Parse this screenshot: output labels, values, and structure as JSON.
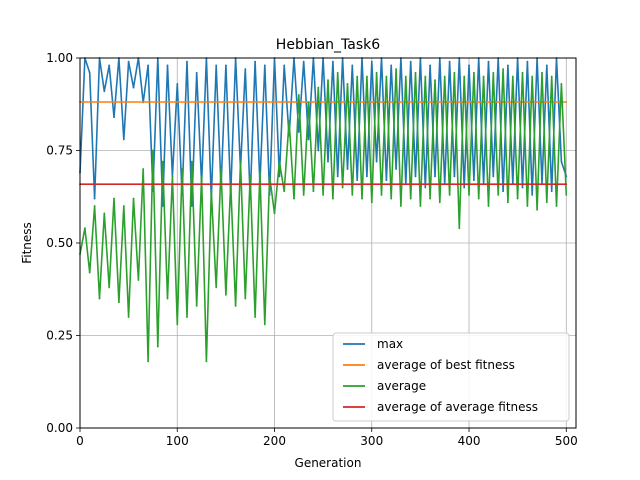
{
  "chart_data": {
    "type": "line",
    "title": "Hebbian_Task6",
    "xlabel": "Generation",
    "ylabel": "Fitness",
    "xlim": [
      0,
      510
    ],
    "ylim": [
      0.0,
      1.0
    ],
    "x_ticks": [
      0,
      100,
      200,
      300,
      400,
      500
    ],
    "y_ticks": [
      0.0,
      0.25,
      0.5,
      0.75,
      1.0
    ],
    "x_tick_labels": [
      "0",
      "100",
      "200",
      "300",
      "400",
      "500"
    ],
    "y_tick_labels": [
      "0.00",
      "0.25",
      "0.50",
      "0.75",
      "1.00"
    ],
    "grid": true,
    "legend_position": "lower-right",
    "series": [
      {
        "name": "max",
        "color": "#1f77b4",
        "x": [
          0,
          5,
          10,
          15,
          20,
          25,
          30,
          35,
          40,
          45,
          50,
          55,
          60,
          65,
          70,
          75,
          80,
          85,
          90,
          95,
          100,
          105,
          110,
          115,
          120,
          125,
          130,
          135,
          140,
          145,
          150,
          155,
          160,
          165,
          170,
          175,
          180,
          185,
          190,
          195,
          200,
          205,
          210,
          215,
          220,
          225,
          230,
          235,
          240,
          245,
          250,
          255,
          260,
          265,
          270,
          275,
          280,
          285,
          290,
          295,
          300,
          305,
          310,
          315,
          320,
          325,
          330,
          335,
          340,
          345,
          350,
          355,
          360,
          365,
          370,
          375,
          380,
          385,
          390,
          395,
          400,
          405,
          410,
          415,
          420,
          425,
          430,
          435,
          440,
          445,
          450,
          455,
          460,
          465,
          470,
          475,
          480,
          485,
          490,
          495,
          500
        ],
        "values": [
          0.69,
          1.0,
          0.96,
          0.62,
          1.0,
          0.91,
          0.98,
          0.84,
          1.0,
          0.78,
          0.99,
          0.92,
          1.0,
          0.88,
          0.98,
          0.64,
          1.0,
          0.6,
          0.98,
          0.68,
          0.93,
          0.63,
          0.99,
          0.6,
          0.96,
          0.66,
          1.0,
          0.62,
          0.98,
          0.65,
          0.98,
          0.63,
          1.0,
          0.7,
          0.97,
          0.62,
          0.99,
          0.66,
          0.98,
          0.63,
          1.0,
          0.68,
          0.98,
          0.79,
          1.0,
          0.8,
          0.99,
          0.78,
          1.0,
          0.75,
          1.0,
          0.72,
          0.99,
          0.68,
          1.0,
          0.7,
          0.98,
          0.67,
          1.0,
          0.68,
          0.99,
          0.72,
          1.0,
          0.67,
          0.98,
          0.7,
          1.0,
          0.66,
          0.99,
          0.68,
          1.0,
          0.65,
          0.98,
          0.68,
          1.0,
          0.66,
          0.99,
          0.68,
          1.0,
          0.65,
          0.98,
          0.67,
          1.0,
          0.66,
          0.99,
          0.68,
          1.0,
          0.64,
          0.98,
          0.66,
          1.0,
          0.65,
          0.99,
          0.63,
          1.0,
          0.66,
          0.98,
          0.64,
          1.0,
          0.72,
          0.68
        ]
      },
      {
        "name": "average of best fitness",
        "color": "#ff7f0e",
        "x": [
          0,
          500
        ],
        "values": [
          0.881,
          0.881
        ]
      },
      {
        "name": "average",
        "color": "#2ca02c",
        "x": [
          0,
          5,
          10,
          15,
          20,
          25,
          30,
          35,
          40,
          45,
          50,
          55,
          60,
          65,
          70,
          75,
          80,
          85,
          90,
          95,
          100,
          105,
          110,
          115,
          120,
          125,
          130,
          135,
          140,
          145,
          150,
          155,
          160,
          165,
          170,
          175,
          180,
          185,
          190,
          195,
          200,
          205,
          210,
          215,
          220,
          225,
          230,
          235,
          240,
          245,
          250,
          255,
          260,
          265,
          270,
          275,
          280,
          285,
          290,
          295,
          300,
          305,
          310,
          315,
          320,
          325,
          330,
          335,
          340,
          345,
          350,
          355,
          360,
          365,
          370,
          375,
          380,
          385,
          390,
          395,
          400,
          405,
          410,
          415,
          420,
          425,
          430,
          435,
          440,
          445,
          450,
          455,
          460,
          465,
          470,
          475,
          480,
          485,
          490,
          495,
          500
        ],
        "values": [
          0.47,
          0.54,
          0.42,
          0.6,
          0.35,
          0.58,
          0.38,
          0.62,
          0.34,
          0.6,
          0.3,
          0.62,
          0.4,
          0.7,
          0.18,
          0.75,
          0.22,
          0.72,
          0.35,
          0.68,
          0.28,
          0.7,
          0.3,
          0.72,
          0.33,
          0.68,
          0.18,
          0.64,
          0.38,
          0.7,
          0.36,
          0.66,
          0.33,
          0.72,
          0.35,
          0.68,
          0.3,
          0.69,
          0.28,
          0.68,
          0.58,
          0.72,
          0.64,
          0.83,
          0.62,
          0.9,
          0.63,
          0.88,
          0.64,
          0.92,
          0.63,
          0.94,
          0.62,
          0.96,
          0.65,
          0.93,
          0.63,
          0.95,
          0.62,
          0.95,
          0.61,
          0.96,
          0.63,
          0.95,
          0.62,
          0.97,
          0.6,
          0.95,
          0.62,
          0.96,
          0.6,
          0.95,
          0.62,
          0.94,
          0.61,
          0.95,
          0.63,
          0.96,
          0.54,
          0.95,
          0.63,
          0.96,
          0.62,
          0.95,
          0.6,
          0.96,
          0.63,
          0.97,
          0.61,
          0.95,
          0.62,
          0.96,
          0.6,
          0.95,
          0.59,
          0.96,
          0.61,
          0.95,
          0.6,
          0.93,
          0.63
        ]
      },
      {
        "name": "average of average fitness",
        "color": "#d62728",
        "x": [
          0,
          500
        ],
        "values": [
          0.659,
          0.659
        ]
      }
    ]
  }
}
